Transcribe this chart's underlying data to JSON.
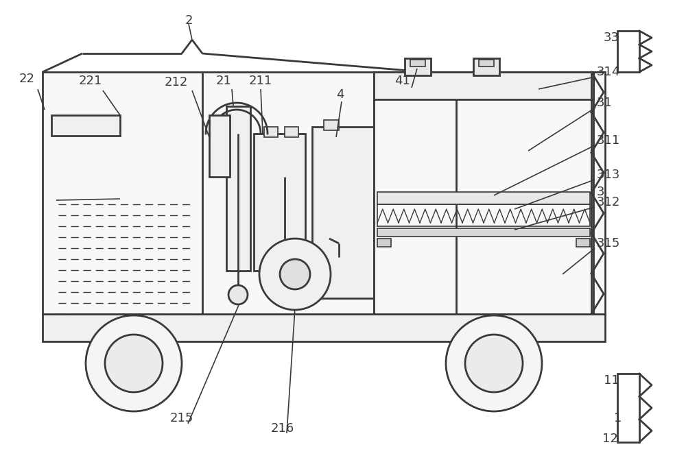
{
  "bg_color": "#ffffff",
  "line_color": "#3a3a3a",
  "fig_width": 10.0,
  "fig_height": 6.87,
  "dpi": 100
}
